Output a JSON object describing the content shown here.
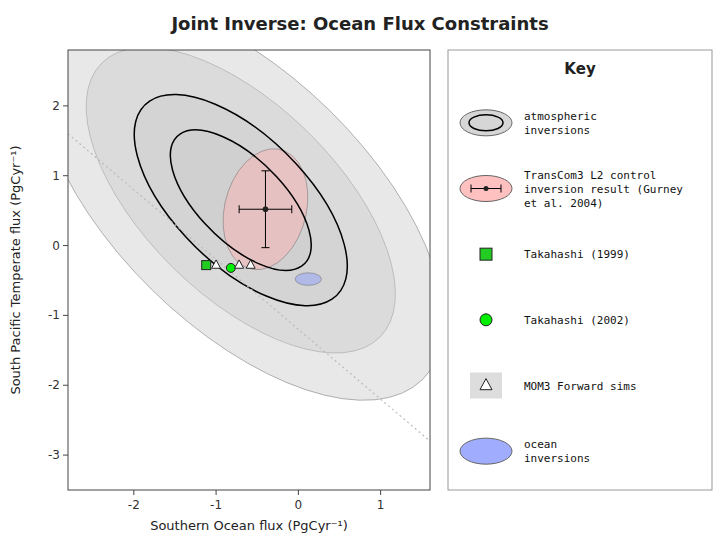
{
  "chart_data": {
    "type": "scatter",
    "title": "Joint Inverse: Ocean Flux Constraints",
    "x_label": "Southern Ocean flux (PgCyr⁻¹)",
    "y_label": "South Pacific Temperate flux (PgCyr⁻¹)",
    "xlim": [
      -2.8,
      1.6
    ],
    "ylim": [
      -3.5,
      2.8
    ],
    "xticks": [
      -2,
      -1,
      0,
      1
    ],
    "yticks": [
      -3,
      -2,
      -1,
      0,
      1,
      2
    ],
    "grid": false,
    "legend": "right",
    "legend_title": "Key",
    "series": [
      {
        "type": "line",
        "line_style": "dotted",
        "color": "#BBBBBB",
        "x": [
          -2.8,
          1.6
        ],
        "values": [
          1.6,
          -2.8
        ]
      },
      {
        "name": "atmospheric\ninversions",
        "type": "ellipse",
        "color": "#CCCCCC",
        "ellipses": [
          {
            "x": -0.7,
            "y": 0.65,
            "width": 2.4,
            "height": 1.1,
            "angle": -52
          },
          {
            "x": -0.7,
            "y": 0.65,
            "width": 3.6,
            "height": 1.7,
            "angle": -52
          },
          {
            "x": -0.7,
            "y": 0.65,
            "width": 5.2,
            "height": 2.5,
            "angle": -52
          },
          {
            "x": -0.7,
            "y": 0.65,
            "width": 6.8,
            "height": 3.3,
            "angle": -52
          }
        ],
        "outline_ellipses": [
          {
            "x": -0.7,
            "y": 0.65,
            "width": 2.4,
            "height": 1.1,
            "angle": -52
          },
          {
            "x": -0.7,
            "y": 0.65,
            "width": 3.6,
            "height": 1.7,
            "angle": -52
          }
        ]
      },
      {
        "name": "TransCom3 L2 control\ninversion result (Gurney\net al. 2004)",
        "type": "ellipse",
        "color": "#FFB0B0",
        "ellipses": [
          {
            "x": -0.4,
            "y": 0.52,
            "width": 1.0,
            "height": 1.75,
            "angle": -10
          }
        ],
        "marker": "circle",
        "x": [
          -0.4
        ],
        "values": [
          0.52
        ],
        "x_error": [
          0.32
        ],
        "y_error": [
          0.55
        ]
      },
      {
        "name": "Takahashi (1999)",
        "type": "scatter",
        "marker": "square",
        "color": "#22CC22",
        "x": [
          -1.12
        ],
        "values": [
          -0.28
        ]
      },
      {
        "name": "Takahashi (2002)",
        "type": "scatter",
        "marker": "circle",
        "color": "#00EE00",
        "x": [
          -0.82
        ],
        "values": [
          -0.32
        ]
      },
      {
        "name": "MOM3 Forward sims",
        "type": "scatter",
        "marker": "triangle",
        "color": "#FFFFFF",
        "x": [
          -1.0,
          -0.72,
          -0.58
        ],
        "values": [
          -0.28,
          -0.28,
          -0.28
        ]
      },
      {
        "name": "ocean\ninversions",
        "type": "ellipse",
        "color": "#8899FF",
        "ellipses": [
          {
            "x": 0.12,
            "y": -0.48,
            "width": 0.32,
            "height": 0.18,
            "angle": 0
          }
        ]
      }
    ]
  }
}
